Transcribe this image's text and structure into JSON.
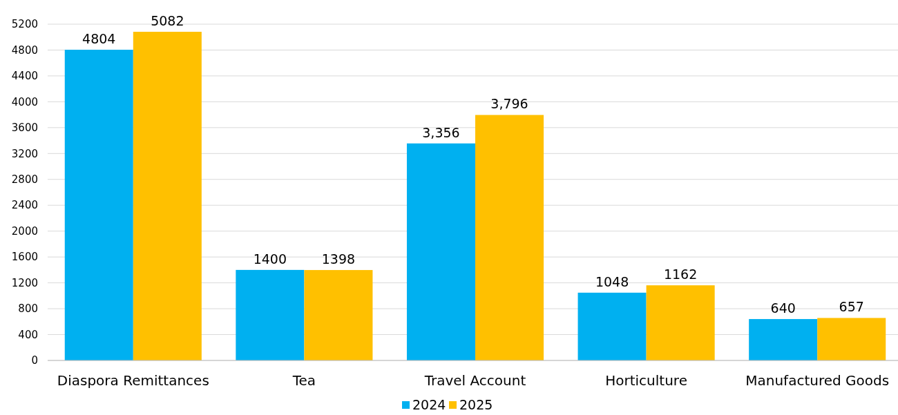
{
  "chart_data": {
    "type": "bar",
    "categories": [
      "Diaspora Remittances",
      "Tea",
      "Travel Account",
      "Horticulture",
      "Manufactured Goods"
    ],
    "series": [
      {
        "name": "2024",
        "color": "#00b0f0",
        "values": [
          4804,
          1400,
          3356,
          1048,
          640
        ],
        "value_labels": [
          "4804",
          "1400",
          "3,356",
          "1048",
          "640"
        ]
      },
      {
        "name": "2025",
        "color": "#ffc000",
        "values": [
          5082,
          1398,
          3796,
          1162,
          657
        ],
        "value_labels": [
          "5082",
          "1398",
          "3,796",
          "1162",
          "657"
        ]
      }
    ],
    "ylim": [
      0,
      5200
    ],
    "yticks": [
      0,
      400,
      800,
      1200,
      1600,
      2000,
      2400,
      2800,
      3200,
      3600,
      4000,
      4400,
      4800,
      5200
    ],
    "grid": "y",
    "legend": "bottom"
  }
}
